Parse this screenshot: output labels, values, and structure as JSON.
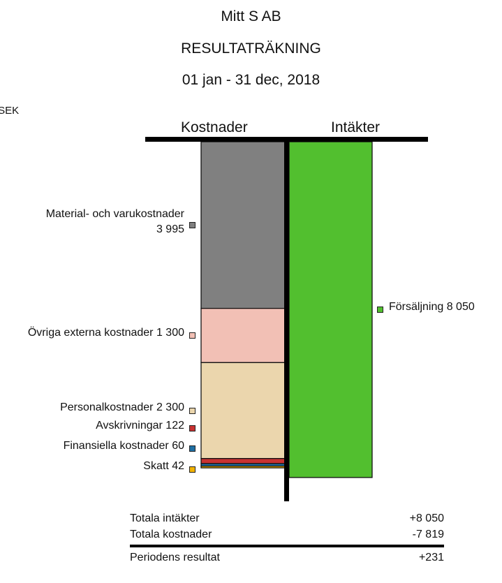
{
  "header": {
    "company": "Mitt S AB",
    "report": "RESULTATRÄKNING",
    "period": "01 jan - 31 dec, 2018",
    "unit": "tSEK"
  },
  "chart_data": {
    "type": "bar",
    "subtype": "stacked-balance",
    "columns": [
      "Kostnader",
      "Intäkter"
    ],
    "costs": [
      {
        "name": "Material- och varukostnader",
        "value": 3995,
        "color": "#808080"
      },
      {
        "name": "Övriga externa kostnader",
        "value": 1300,
        "color": "#f2c0b5"
      },
      {
        "name": "Personalkostnader",
        "value": 2300,
        "color": "#ebd6ad"
      },
      {
        "name": "Avskrivningar",
        "value": 122,
        "color": "#c83232"
      },
      {
        "name": "Finansiella kostnader",
        "value": 60,
        "color": "#1f6fa3"
      },
      {
        "name": "Skatt",
        "value": 42,
        "color": "#f2b300"
      }
    ],
    "incomes": [
      {
        "name": "Försäljning",
        "value": 8050,
        "color": "#52bf2f"
      }
    ],
    "labels": {
      "costs": [
        [
          "Material- och varukostnader",
          "3 995"
        ],
        [
          "Övriga externa kostnader 1 300"
        ],
        [
          "Personalkostnader 2 300"
        ],
        [
          "Avskrivningar 122"
        ],
        [
          "Finansiella kostnader 60"
        ],
        [
          "Skatt 42"
        ]
      ],
      "incomes": [
        "Försäljning 8 050"
      ]
    }
  },
  "summary": {
    "rows": [
      {
        "label": "Totala intäkter",
        "value": "+8 050"
      },
      {
        "label": "Totala kostnader",
        "value": "-7 819"
      }
    ],
    "result": {
      "label": "Periodens resultat",
      "value": "+231"
    }
  }
}
